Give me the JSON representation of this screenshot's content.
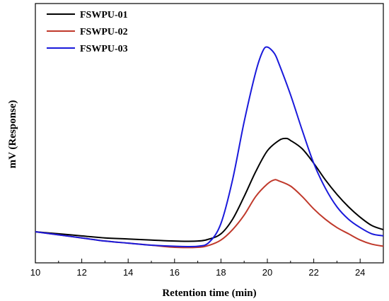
{
  "chart_data": {
    "type": "line",
    "title": "",
    "xlabel": "Retention time (min)",
    "ylabel": "mV (Response)",
    "xlim": [
      10,
      25
    ],
    "xticks": [
      10,
      12,
      14,
      16,
      18,
      20,
      22,
      24
    ],
    "ylim": [
      -0.15,
      1.1
    ],
    "y_tick_labels_shown": false,
    "grid": false,
    "legend_position": "top-left",
    "series": [
      {
        "name": "FSWPU-01",
        "color": "#000000",
        "x": [
          10,
          11,
          12,
          13,
          14,
          15,
          16,
          17,
          17.5,
          18,
          18.5,
          19,
          19.5,
          20,
          20.5,
          20.8,
          21,
          21.5,
          22,
          22.5,
          23,
          23.5,
          24,
          24.5,
          25
        ],
        "y": [
          0.0,
          -0.01,
          -0.02,
          -0.03,
          -0.035,
          -0.04,
          -0.045,
          -0.045,
          -0.035,
          -0.01,
          0.06,
          0.17,
          0.29,
          0.39,
          0.44,
          0.45,
          0.44,
          0.4,
          0.33,
          0.25,
          0.18,
          0.12,
          0.07,
          0.03,
          0.01
        ]
      },
      {
        "name": "FSWPU-02",
        "color": "#c0392b",
        "x": [
          10,
          11,
          12,
          13,
          14,
          15,
          16,
          17,
          17.5,
          18,
          18.5,
          19,
          19.5,
          20,
          20.3,
          20.5,
          21,
          21.5,
          22,
          22.5,
          23,
          23.5,
          24,
          24.5,
          25
        ],
        "y": [
          0.0,
          -0.015,
          -0.03,
          -0.045,
          -0.055,
          -0.065,
          -0.075,
          -0.075,
          -0.065,
          -0.04,
          0.01,
          0.08,
          0.17,
          0.23,
          0.25,
          0.245,
          0.22,
          0.17,
          0.11,
          0.06,
          0.02,
          -0.01,
          -0.04,
          -0.06,
          -0.07
        ]
      },
      {
        "name": "FSWPU-03",
        "color": "#1a1adb",
        "x": [
          10,
          11,
          12,
          13,
          14,
          15,
          16,
          17,
          17.5,
          18,
          18.5,
          19,
          19.5,
          19.8,
          20,
          20.3,
          20.5,
          21,
          21.5,
          22,
          22.5,
          23,
          23.5,
          24,
          24.5,
          25
        ],
        "y": [
          0.0,
          -0.015,
          -0.03,
          -0.045,
          -0.055,
          -0.065,
          -0.07,
          -0.07,
          -0.05,
          0.04,
          0.25,
          0.53,
          0.77,
          0.87,
          0.89,
          0.86,
          0.81,
          0.66,
          0.49,
          0.33,
          0.21,
          0.12,
          0.06,
          0.02,
          -0.01,
          -0.02
        ]
      }
    ]
  }
}
